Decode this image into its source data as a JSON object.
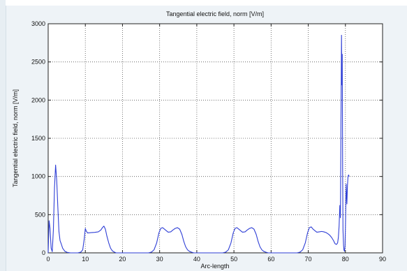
{
  "chart_data": {
    "type": "line",
    "title": "Tangential electric field, norm [V/m]",
    "xlabel": "Arc-length",
    "ylabel": "Tangential electric field, norm [V/m]",
    "xlim": [
      0,
      90
    ],
    "ylim": [
      0,
      3000
    ],
    "xticks": [
      "0",
      "10",
      "20",
      "30",
      "40",
      "50",
      "60",
      "70",
      "80",
      "90"
    ],
    "yticks": [
      "0",
      "500",
      "1000",
      "1500",
      "2000",
      "2500",
      "3000"
    ],
    "grid": true,
    "legend": "none",
    "series": [
      {
        "color": "#2f3fd6",
        "x": [
          0,
          0.25,
          0.5,
          0.8,
          1.1,
          1.4,
          1.7,
          2.0,
          2.3,
          2.6,
          2.9,
          3.2,
          3.5,
          3.9,
          4.5,
          5.2,
          6.0,
          6.8,
          8.0,
          8.8,
          9.3,
          9.7,
          10.0,
          10.2,
          10.6,
          11.5,
          12.5,
          13.5,
          14.2,
          14.6,
          15.0,
          15.4,
          15.8,
          16.3,
          16.8,
          17.3,
          17.8,
          18.3,
          19.0,
          20.0,
          27.0,
          27.8,
          28.5,
          29.2,
          29.8,
          30.3,
          30.8,
          31.3,
          31.8,
          32.3,
          33.0,
          33.6,
          34.2,
          34.8,
          35.4,
          36.0,
          36.5,
          37.0,
          37.5,
          38.0,
          38.5,
          39.2,
          40.0,
          47.0,
          47.8,
          48.5,
          49.2,
          49.8,
          50.3,
          50.8,
          51.3,
          51.8,
          52.3,
          53.0,
          53.6,
          54.2,
          54.8,
          55.4,
          56.0,
          56.5,
          57.0,
          57.5,
          58.0,
          58.5,
          59.2,
          60.0,
          67.0,
          67.8,
          68.5,
          69.2,
          69.8,
          70.3,
          70.8,
          71.3,
          71.8,
          72.3,
          73.0,
          73.6,
          74.2,
          74.8,
          75.3,
          75.8,
          76.3,
          76.8,
          77.2,
          77.6,
          77.9,
          78.1,
          78.3,
          78.5,
          78.65,
          78.8,
          78.95,
          79.05,
          79.15,
          79.25,
          79.35,
          79.5,
          79.6,
          79.75,
          79.9,
          80.05,
          80.2,
          80.4,
          80.55,
          80.7,
          80.85,
          81.0
        ],
        "y": [
          0,
          420,
          320,
          60,
          15,
          300,
          850,
          1150,
          950,
          600,
          280,
          160,
          120,
          60,
          20,
          5,
          0,
          0,
          0,
          10,
          40,
          180,
          320,
          290,
          260,
          265,
          268,
          275,
          300,
          330,
          350,
          310,
          220,
          130,
          60,
          25,
          10,
          0,
          0,
          0,
          0,
          10,
          40,
          130,
          260,
          320,
          330,
          310,
          290,
          270,
          275,
          300,
          320,
          330,
          310,
          240,
          150,
          80,
          40,
          20,
          10,
          0,
          0,
          0,
          10,
          40,
          130,
          260,
          320,
          330,
          310,
          290,
          270,
          275,
          300,
          320,
          330,
          310,
          240,
          150,
          80,
          40,
          20,
          10,
          0,
          0,
          0,
          10,
          40,
          130,
          260,
          330,
          340,
          310,
          290,
          270,
          275,
          280,
          275,
          265,
          250,
          230,
          200,
          160,
          120,
          110,
          130,
          200,
          350,
          620,
          460,
          1650,
          2850,
          2200,
          2600,
          1100,
          300,
          100,
          40,
          20,
          90,
          450,
          900,
          640,
          880,
          1000,
          1020,
          1000
        ]
      }
    ]
  }
}
